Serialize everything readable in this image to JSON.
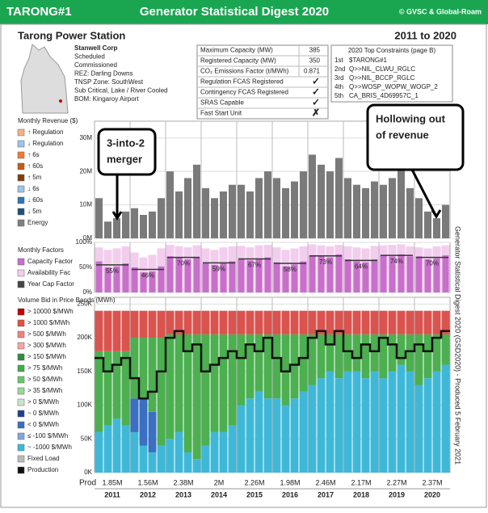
{
  "header": {
    "unit": "TARONG#1",
    "title": "Generator Statistical Digest 2020",
    "credit": "© GVSC & Global-Roam"
  },
  "station": {
    "name": "Tarong Power Station",
    "period": "2011 to 2020",
    "info": [
      "Stanwell Corp",
      "Scheduled",
      "Commissioned",
      "REZ: Darling Downs",
      "TNSP Zone: SouthWest",
      "Sub Critical, Lake / River Cooled",
      "BOM: Kingaroy Airport"
    ]
  },
  "specs": {
    "rows": [
      [
        "Maximum Capacity (MW)",
        "385"
      ],
      [
        "Registered Capacity (MW)",
        "350"
      ],
      [
        "CO₂ Emissions Factor (t/MWh)",
        "0.871"
      ],
      [
        "Regulation FCAS Registered",
        "✓"
      ],
      [
        "Contingency FCAS Registered",
        "✓"
      ],
      [
        "SRAS Capable",
        "✓"
      ],
      [
        "Fast Start Unit",
        "✗"
      ]
    ]
  },
  "constraints": {
    "title": "2020 Top Constraints (page B)",
    "rows": [
      [
        "1st",
        "$TARONG#1"
      ],
      [
        "2nd",
        "Q>>NIL_CLWU_RGLC"
      ],
      [
        "3rd",
        "Q>>NIL_BCCP_RGLC"
      ],
      [
        "4th",
        "Q>>WOSP_WOPW_WOGP_2"
      ],
      [
        "5th",
        "CA_BRIS_4D69957C_1"
      ]
    ]
  },
  "side_note": "Generator Statistical Digest 2020 (GSD2020) - Produced 5 February 2021",
  "annotations": [
    [
      "3-into-2",
      "merger"
    ],
    [
      "Hollowing out",
      "of revenue"
    ]
  ],
  "chart_data": [
    {
      "type": "bar",
      "title": "Monthly Revenue ($)",
      "legend": [
        "↑ Regulation",
        "↓ Regulation",
        "↑ 6s",
        "↑ 60s",
        "↑ 5m",
        "↓ 6s",
        "↓ 60s",
        "↓ 5m",
        "Energy"
      ],
      "legend_colors": [
        "#f4b183",
        "#9dc3e6",
        "#ed7d31",
        "#c55a11",
        "#843c0c",
        "#9dc3e6",
        "#2e75b6",
        "#1f4e79",
        "#808080"
      ],
      "color": "#7a7a7a",
      "ylim": [
        0,
        35
      ],
      "yticks": [
        {
          "value": 0,
          "label": "0M"
        },
        {
          "value": 10,
          "label": "10M"
        },
        {
          "value": 20,
          "label": "20M"
        },
        {
          "value": 30,
          "label": "30M"
        }
      ],
      "values": [
        12,
        5,
        6,
        8,
        9,
        7,
        8,
        12,
        20,
        14,
        18,
        22,
        15,
        12,
        14,
        16,
        16,
        14,
        18,
        20,
        18,
        15,
        17,
        20,
        25,
        22,
        20,
        24,
        18,
        16,
        15,
        17,
        16,
        18,
        22,
        15,
        12,
        8,
        6,
        10
      ]
    },
    {
      "type": "factor",
      "title": "Monthly Factors",
      "legend": [
        "Capacity Factor",
        "Availability Fac",
        "Year Cap Factor"
      ],
      "legend_colors": [
        "#c86fcc",
        "#f3cdee",
        "#444"
      ],
      "ylim": [
        0,
        100
      ],
      "yticks": [
        {
          "value": 0,
          "label": "0%"
        },
        {
          "value": 50,
          "label": "50%"
        },
        {
          "value": 100,
          "label": "100%"
        }
      ],
      "series": [
        {
          "name": "Availability Fac",
          "color": "#f3cdee",
          "values": [
            90,
            85,
            88,
            92,
            80,
            70,
            75,
            88,
            95,
            92,
            90,
            94,
            88,
            85,
            90,
            92,
            93,
            90,
            94,
            95,
            90,
            85,
            88,
            92,
            96,
            94,
            92,
            95,
            92,
            90,
            88,
            93,
            94,
            95,
            96,
            92,
            90,
            88,
            92,
            94
          ]
        },
        {
          "name": "Capacity Factor",
          "color": "#c86fcc",
          "values": [
            62,
            50,
            52,
            58,
            50,
            40,
            42,
            52,
            72,
            70,
            66,
            70,
            58,
            55,
            60,
            62,
            66,
            64,
            68,
            70,
            60,
            52,
            56,
            62,
            74,
            72,
            70,
            76,
            66,
            62,
            60,
            66,
            74,
            72,
            76,
            72,
            72,
            66,
            68,
            74
          ]
        }
      ],
      "year_values": [
        55,
        46,
        70,
        59,
        67,
        58,
        73,
        64,
        74,
        70
      ],
      "year_value_labels": [
        "55%",
        "46%",
        "70%",
        "59%",
        "67%",
        "58%",
        "73%",
        "64%",
        "74%",
        "70%"
      ]
    },
    {
      "type": "stacked",
      "title": "Volume Bid in Price Bands (MWh)",
      "legend": [
        "> 10000 $/MWh",
        "> 1000 $/MWh",
        "> 500 $/MWh",
        "> 300 $/MWh",
        "> 150 $/MWh",
        "> 75 $/MWh",
        "> 50 $/MWh",
        "> 35 $/MWh",
        "> 0 $/MWh",
        "~ 0 $/MWh",
        "< 0 $/MWh",
        "≤ -100 $/MWh",
        "~ -1000 $/MWh",
        "Fixed Load",
        "Production"
      ],
      "legend_colors": [
        "#c00000",
        "#e74c3c",
        "#f08080",
        "#f4a3a3",
        "#2e8b3e",
        "#3cae4c",
        "#6cc66c",
        "#9ad69a",
        "#c8e6c9",
        "#1f3f8f",
        "#3a6fc1",
        "#7fa7dc",
        "#3fb8d8",
        "#bbb",
        "#111"
      ],
      "ylim": [
        0,
        260
      ],
      "yticks": [
        {
          "value": 0,
          "label": "0K"
        },
        {
          "value": 50,
          "label": "50K"
        },
        {
          "value": 100,
          "label": "100K"
        },
        {
          "value": 150,
          "label": "150K"
        },
        {
          "value": 200,
          "label": "200K"
        },
        {
          "value": 250,
          "label": "250K"
        }
      ],
      "series": [
        {
          "name": "~ -1000 $/MWh",
          "color": "#3fb8d8",
          "values": [
            60,
            70,
            80,
            70,
            60,
            40,
            30,
            40,
            50,
            60,
            30,
            20,
            40,
            60,
            60,
            70,
            100,
            110,
            120,
            110,
            110,
            100,
            110,
            120,
            130,
            140,
            150,
            140,
            150,
            150,
            140,
            150,
            140,
            150,
            160,
            150,
            130,
            140,
            150,
            160
          ]
        },
        {
          "name": "< 0 $/MWh",
          "color": "#3a6fc1",
          "values": [
            0,
            0,
            0,
            0,
            50,
            70,
            60,
            0,
            0,
            0,
            0,
            0,
            0,
            0,
            0,
            0,
            0,
            0,
            0,
            0,
            0,
            0,
            0,
            0,
            0,
            0,
            0,
            0,
            0,
            0,
            0,
            0,
            0,
            0,
            0,
            0,
            0,
            0,
            0,
            0
          ]
        },
        {
          "name": "> 0 $/MWh",
          "color": "#4caf50",
          "values": [
            120,
            110,
            100,
            110,
            90,
            90,
            110,
            160,
            155,
            145,
            175,
            185,
            165,
            145,
            145,
            135,
            105,
            95,
            85,
            95,
            95,
            105,
            95,
            85,
            75,
            65,
            55,
            65,
            55,
            55,
            65,
            55,
            65,
            55,
            45,
            55,
            75,
            65,
            55,
            45
          ]
        },
        {
          "name": "> 10000 $/MWh",
          "color": "#d9534f",
          "values": [
            60,
            60,
            60,
            60,
            40,
            40,
            40,
            40,
            35,
            35,
            35,
            35,
            35,
            35,
            35,
            35,
            35,
            35,
            35,
            35,
            35,
            35,
            35,
            35,
            35,
            35,
            35,
            35,
            35,
            35,
            35,
            35,
            35,
            35,
            35,
            35,
            35,
            35,
            35,
            35
          ]
        }
      ],
      "production": [
        170,
        150,
        160,
        170,
        140,
        110,
        120,
        150,
        200,
        210,
        180,
        190,
        150,
        160,
        170,
        180,
        170,
        190,
        180,
        200,
        170,
        150,
        160,
        170,
        200,
        210,
        190,
        210,
        180,
        170,
        190,
        180,
        200,
        190,
        170,
        180,
        190,
        180,
        200,
        210
      ],
      "prod_title": "Prod",
      "prod_labels": [
        "1.85M",
        "1.56M",
        "2.38M",
        "2M",
        "2.26M",
        "1.98M",
        "2.46M",
        "2.17M",
        "2.27M",
        "2.37M"
      ],
      "years": [
        "2011",
        "2012",
        "2013",
        "2014",
        "2015",
        "2016",
        "2017",
        "2018",
        "2019",
        "2020"
      ]
    }
  ]
}
